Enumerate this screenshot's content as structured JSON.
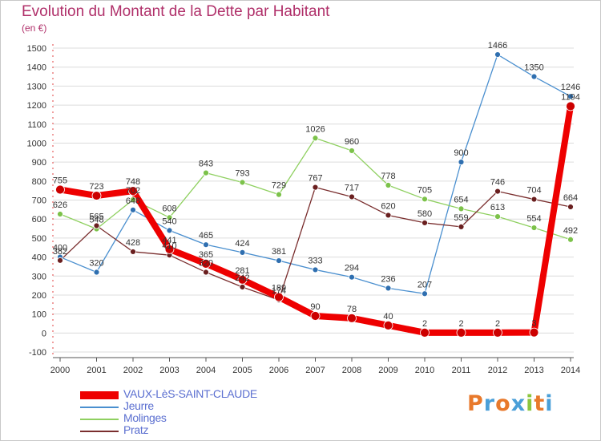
{
  "header": {
    "title": "Evolution du Montant de la Dette par Habitant",
    "unit": "(en €)"
  },
  "logo": {
    "text": "Proxiti",
    "letters": [
      {
        "ch": "P",
        "color": "#e8792b"
      },
      {
        "ch": "r",
        "color": "#4a9fd8"
      },
      {
        "ch": "o",
        "color": "#e8792b"
      },
      {
        "ch": "x",
        "color": "#4a9fd8"
      },
      {
        "ch": "i",
        "color": "#8cc63f"
      },
      {
        "ch": "t",
        "color": "#e8792b"
      },
      {
        "ch": "i",
        "color": "#4a9fd8"
      }
    ]
  },
  "chart_data": {
    "type": "line",
    "title": "Evolution du Montant de la Dette par Habitant",
    "ylabel": "(en €)",
    "xlabel": "",
    "ylim": [
      -100,
      1500
    ],
    "yticks": [
      -100,
      0,
      100,
      200,
      300,
      400,
      500,
      600,
      700,
      800,
      900,
      1000,
      1100,
      1200,
      1300,
      1400,
      1500
    ],
    "categories": [
      "2000",
      "2001",
      "2002",
      "2003",
      "2004",
      "2005",
      "2006",
      "2007",
      "2008",
      "2009",
      "2010",
      "2011",
      "2012",
      "2013",
      "2014"
    ],
    "grid": "horizontal",
    "legend": "bottom-left",
    "series": [
      {
        "name": "Jeurre",
        "color": "#4a8fcf",
        "marker": "#2f6fb0",
        "width": 1.3,
        "values": [
          400,
          320,
          648,
          540,
          465,
          424,
          381,
          333,
          294,
          236,
          207,
          900,
          1466,
          1350,
          1246
        ],
        "labels": [
          "400",
          "320",
          "648",
          "540",
          "465",
          "424",
          "381",
          "333",
          "294",
          "236",
          "207",
          "900",
          "1466",
          "1350",
          "1246"
        ]
      },
      {
        "name": "Molinges",
        "color": "#8fd060",
        "marker": "#7cc24a",
        "width": 1.3,
        "values": [
          626,
          548,
          702,
          608,
          843,
          793,
          729,
          1026,
          960,
          778,
          705,
          654,
          613,
          554,
          492
        ],
        "labels": [
          "626",
          "548",
          "702",
          "608",
          "843",
          "793",
          "729",
          "1026",
          "960",
          "778",
          "705",
          "654",
          "613",
          "554",
          "492"
        ]
      },
      {
        "name": "Pratz",
        "color": "#7a2e2e",
        "marker": "#6a1f1f",
        "width": 1.3,
        "values": [
          382,
          565,
          428,
          410,
          320,
          242,
          174,
          767,
          717,
          620,
          580,
          559,
          746,
          704,
          664
        ],
        "labels": [
          "382",
          "565",
          "428",
          "410",
          "320",
          "242",
          "174",
          "767",
          "717",
          "620",
          "580",
          "559",
          "746",
          "704",
          "664"
        ]
      },
      {
        "name": "VAUX-LèS-SAINT-CLAUDE",
        "color": "#ee0000",
        "marker": "#cc0000",
        "width": 8,
        "values": [
          755,
          723,
          748,
          441,
          365,
          281,
          189,
          90,
          78,
          40,
          2,
          2,
          2,
          3,
          1194
        ],
        "labels": [
          "755",
          "723",
          "748",
          "441",
          "365",
          "281",
          "189",
          "90",
          "78",
          "40",
          "2",
          "2",
          "2",
          "3",
          "1194"
        ]
      }
    ],
    "legend_order": [
      "VAUX-LèS-SAINT-CLAUDE",
      "Jeurre",
      "Molinges",
      "Pratz"
    ]
  }
}
